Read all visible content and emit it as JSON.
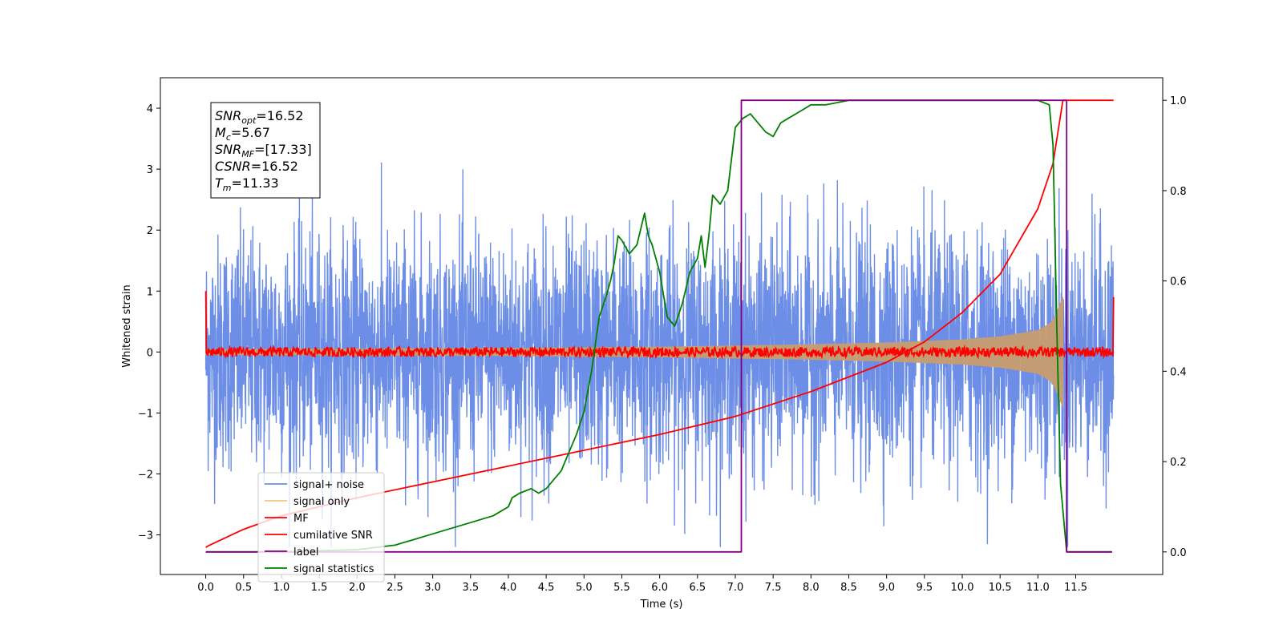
{
  "chart_data": {
    "type": "line",
    "xlabel": "Time (s)",
    "ylabel": "Whitened strain",
    "xlim": [
      -0.6,
      12.65
    ],
    "ylim": [
      -3.65,
      4.5
    ],
    "y2lim": [
      -0.05,
      1.05
    ],
    "x_ticks": [
      0.0,
      0.5,
      1.0,
      1.5,
      2.0,
      2.5,
      3.0,
      3.5,
      4.0,
      4.5,
      5.0,
      5.5,
      6.0,
      6.5,
      7.0,
      7.5,
      8.0,
      8.5,
      9.0,
      9.5,
      10.0,
      10.5,
      11.0,
      11.5
    ],
    "x_tick_labels": [
      "0.0",
      "0.5",
      "1.0",
      "1.5",
      "2.0",
      "2.5",
      "3.0",
      "3.5",
      "4.0",
      "4.5",
      "5.0",
      "5.5",
      "6.0",
      "6.5",
      "7.0",
      "7.5",
      "8.0",
      "8.5",
      "9.0",
      "9.5",
      "10.0",
      "10.5",
      "11.0",
      "11.5"
    ],
    "y_ticks": [
      -3,
      -2,
      -1,
      0,
      1,
      2,
      3,
      4
    ],
    "y_tick_labels": [
      "−3",
      "−2",
      "−1",
      "0",
      "1",
      "2",
      "3",
      "4"
    ],
    "y2_ticks": [
      0.0,
      0.2,
      0.4,
      0.6,
      0.8,
      1.0
    ],
    "y2_tick_labels": [
      "0.0",
      "0.2",
      "0.4",
      "0.6",
      "0.8",
      "1.0"
    ],
    "legend_position": "lower-left",
    "annotation": [
      {
        "main": "SNR",
        "sub": "opt",
        "rest": "=16.52"
      },
      {
        "main": "M",
        "sub": "c",
        "rest": "=5.67"
      },
      {
        "main": "SNR",
        "sub": "MF",
        "rest": "=[17.33]"
      },
      {
        "main": "CSNR",
        "sub": "",
        "rest": "=16.52"
      },
      {
        "main": "T",
        "sub": "m",
        "rest": "=11.33"
      }
    ],
    "series": [
      {
        "name": "signal+ noise",
        "color": "#6c8ee6",
        "axis": "left",
        "x_range": [
          0.0,
          12.0
        ],
        "noise_band": [
          -1.6,
          1.6
        ],
        "peak_max": 3.9,
        "peak_min": -3.2
      },
      {
        "name": "signal only",
        "color": "#c89c6e",
        "axis": "left",
        "x": [
          0.0,
          1.0,
          2.0,
          3.0,
          4.0,
          5.0,
          6.0,
          7.0,
          8.0,
          9.0,
          10.0,
          10.5,
          11.0,
          11.2,
          11.33
        ],
        "envelope": [
          0.04,
          0.045,
          0.05,
          0.055,
          0.06,
          0.07,
          0.08,
          0.1,
          0.12,
          0.15,
          0.2,
          0.25,
          0.35,
          0.5,
          0.9
        ]
      },
      {
        "name": "MF",
        "color": "#ff0000",
        "axis": "left",
        "x_range": [
          0.0,
          12.0
        ],
        "center": 0.0,
        "amplitude": 0.08,
        "end_values": [
          1.0,
          0.9
        ]
      },
      {
        "name": "cumilative SNR",
        "color": "#ff0000",
        "axis": "right",
        "x": [
          0.0,
          0.05,
          0.5,
          1.0,
          2.0,
          3.0,
          4.0,
          5.0,
          6.0,
          7.0,
          8.0,
          9.0,
          9.5,
          10.0,
          10.5,
          11.0,
          11.2,
          11.33,
          12.0
        ],
        "values": [
          0.01,
          0.015,
          0.05,
          0.08,
          0.12,
          0.155,
          0.19,
          0.225,
          0.26,
          0.3,
          0.355,
          0.42,
          0.465,
          0.53,
          0.615,
          0.76,
          0.86,
          1.0,
          1.0
        ]
      },
      {
        "name": "label",
        "color": "#800080",
        "axis": "right",
        "x": [
          0.0,
          7.08,
          7.08,
          11.38,
          11.38,
          11.98
        ],
        "values": [
          0.0,
          0.0,
          1.0,
          1.0,
          0.0,
          0.0
        ]
      },
      {
        "name": "signal statistics",
        "color": "#008000",
        "axis": "right",
        "x": [
          0.0,
          1.0,
          2.0,
          2.5,
          3.0,
          3.5,
          3.8,
          4.0,
          4.05,
          4.15,
          4.3,
          4.4,
          4.5,
          4.6,
          4.7,
          4.8,
          4.9,
          5.0,
          5.1,
          5.2,
          5.3,
          5.35,
          5.4,
          5.45,
          5.5,
          5.6,
          5.7,
          5.8,
          5.85,
          5.9,
          6.0,
          6.1,
          6.2,
          6.3,
          6.4,
          6.5,
          6.55,
          6.6,
          6.65,
          6.7,
          6.8,
          6.9,
          7.0,
          7.1,
          7.2,
          7.3,
          7.4,
          7.5,
          7.6,
          7.7,
          7.8,
          7.9,
          8.0,
          8.2,
          8.5,
          9.0,
          10.0,
          11.0,
          11.15,
          11.2,
          11.25,
          11.3,
          11.38,
          11.5,
          11.98
        ],
        "values": [
          0.0,
          0.0,
          0.005,
          0.015,
          0.04,
          0.065,
          0.08,
          0.1,
          0.12,
          0.13,
          0.14,
          0.13,
          0.14,
          0.16,
          0.18,
          0.22,
          0.26,
          0.31,
          0.4,
          0.52,
          0.57,
          0.6,
          0.64,
          0.7,
          0.69,
          0.66,
          0.68,
          0.75,
          0.7,
          0.68,
          0.62,
          0.52,
          0.5,
          0.55,
          0.62,
          0.65,
          0.7,
          0.63,
          0.7,
          0.79,
          0.77,
          0.8,
          0.94,
          0.96,
          0.97,
          0.95,
          0.93,
          0.92,
          0.95,
          0.96,
          0.97,
          0.98,
          0.99,
          0.99,
          1.0,
          1.0,
          1.0,
          1.0,
          0.99,
          0.9,
          0.5,
          0.15,
          0.0,
          0.0,
          0.0
        ]
      }
    ]
  }
}
